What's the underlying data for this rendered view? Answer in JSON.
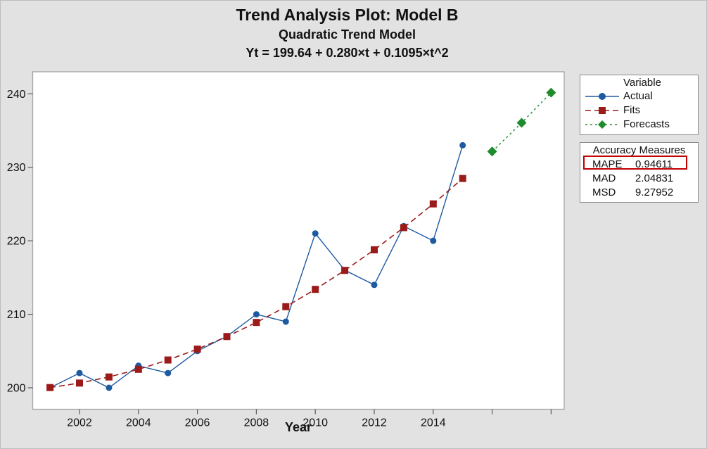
{
  "title": "Trend Analysis Plot: Model B",
  "subtitle": "Quadratic Trend Model",
  "equation": "Yt = 199.64 + 0.280×t + 0.1095×t^2",
  "xlabel": "Year",
  "legend": {
    "title": "Variable",
    "items": [
      {
        "label": "Actual",
        "color": "#1E5AA0",
        "marker": "circle",
        "dash": ""
      },
      {
        "label": "Fits",
        "color": "#9B1B1B",
        "marker": "square",
        "dash": "8,5"
      },
      {
        "label": "Forecasts",
        "color": "#1E8B2D",
        "marker": "diamond",
        "dash": "3,4"
      }
    ]
  },
  "accuracy": {
    "title": "Accuracy Measures",
    "rows": [
      {
        "label": "MAPE",
        "value": "0.94611",
        "highlighted": true
      },
      {
        "label": "MAD",
        "value": "2.04831",
        "highlighted": false
      },
      {
        "label": "MSD",
        "value": "9.27952",
        "highlighted": false
      }
    ],
    "highlight_color": "#C00000"
  },
  "chart_data": {
    "type": "line",
    "title": "Trend Analysis Plot: Model B",
    "xlabel": "Year",
    "ylabel": "",
    "grid": false,
    "legend_position": "right",
    "xlim": [
      2000.4,
      2018.6
    ],
    "ylim": [
      197,
      243.2
    ],
    "plot_bg": "#FFFFFF",
    "frame_color": "#A3A3A3",
    "tick_color": "#5A5A5A",
    "text_color": "#111111",
    "yticks": [
      200,
      210,
      220,
      230,
      240
    ],
    "xticks": [
      {
        "year": 2002,
        "label": "2002"
      },
      {
        "year": 2004,
        "label": "2004"
      },
      {
        "year": 2006,
        "label": "2006"
      },
      {
        "year": 2008,
        "label": "2008"
      },
      {
        "year": 2010,
        "label": "2010"
      },
      {
        "year": 2012,
        "label": "2012"
      },
      {
        "year": 2014,
        "label": "2014"
      },
      {
        "year": 2016,
        "label": ""
      },
      {
        "year": 2018,
        "label": ""
      }
    ],
    "series": [
      {
        "name": "Actual",
        "x": [
          2001,
          2002,
          2003,
          2004,
          2005,
          2006,
          2007,
          2008,
          2009,
          2010,
          2011,
          2012,
          2013,
          2014,
          2015
        ],
        "values": [
          200,
          202,
          200,
          203,
          202,
          205,
          207,
          210,
          209,
          221,
          216,
          214,
          222,
          220,
          233
        ],
        "color": "#1E5AA0",
        "marker": "circle",
        "dash": "",
        "line_width": 1.4
      },
      {
        "name": "Fits",
        "x": [
          2001,
          2002,
          2003,
          2004,
          2005,
          2006,
          2007,
          2008,
          2009,
          2010,
          2011,
          2012,
          2013,
          2014,
          2015
        ],
        "values": [
          200.03,
          200.64,
          201.47,
          202.51,
          203.78,
          205.26,
          206.97,
          208.89,
          211.03,
          213.39,
          215.97,
          218.77,
          221.79,
          225.02,
          228.48
        ],
        "color": "#9B1B1B",
        "marker": "square",
        "dash": "8,5",
        "line_width": 1.6
      },
      {
        "name": "Forecasts",
        "x": [
          2016,
          2017,
          2018
        ],
        "values": [
          232.15,
          236.05,
          240.16
        ],
        "color": "#1E8B2D",
        "marker": "diamond",
        "dash": "3,4",
        "line_width": 1.4
      }
    ]
  }
}
